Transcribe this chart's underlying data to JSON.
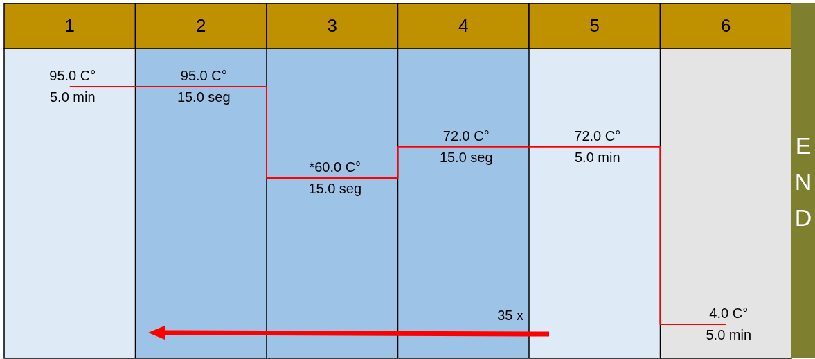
{
  "chart_data": {
    "type": "step",
    "categories": [
      "1",
      "2",
      "3",
      "4",
      "5",
      "6"
    ],
    "values": [
      95,
      95,
      60,
      72,
      72,
      4
    ],
    "color": "#ff0000",
    "value_labels": [
      "95.0 C°",
      "95.0 C°",
      "*60.0 C°",
      "72.0 C°",
      "72.0 C°",
      "4.0 C°"
    ],
    "annotations": [
      "5.0 min",
      "15.0 seg",
      "15.0 seg",
      "15.0 seg",
      "5.0 min",
      "5.0 min",
      "35 x",
      "END"
    ]
  }
}
